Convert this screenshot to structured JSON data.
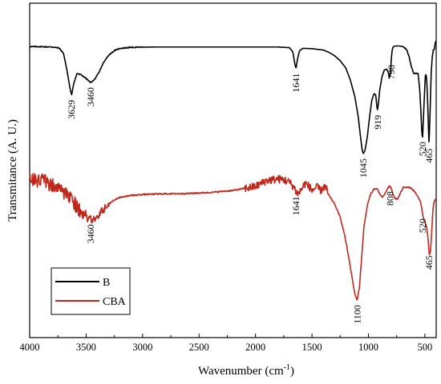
{
  "chart_data": {
    "type": "line",
    "xlabel": "Wavenumber (cm",
    "xlabel_sup": "-1",
    "xlabel_end": ")",
    "ylabel": "Transmitance (A. U.)",
    "xlim": [
      4000,
      400
    ],
    "x_reversed": true,
    "ylim": [
      0,
      1
    ],
    "y_ticks_labeled": false,
    "grid": false,
    "legend_position": "bottom-left",
    "x_ticks": [
      4000,
      3500,
      3000,
      2500,
      2000,
      1500,
      1000,
      500
    ],
    "x_tick_labels": [
      "4000",
      "3500",
      "3000",
      "2500",
      "2000",
      "1500",
      "1000",
      "500"
    ],
    "series": [
      {
        "name": "B",
        "color": "#000000",
        "noisy": false,
        "x": [
          4000,
          3900,
          3800,
          3740,
          3700,
          3670,
          3640,
          3629,
          3610,
          3580,
          3540,
          3500,
          3470,
          3460,
          3430,
          3390,
          3350,
          3300,
          3250,
          3200,
          3100,
          2900,
          2700,
          2500,
          2300,
          2000,
          1800,
          1700,
          1670,
          1650,
          1641,
          1630,
          1610,
          1580,
          1500,
          1400,
          1350,
          1300,
          1250,
          1200,
          1160,
          1120,
          1090,
          1070,
          1055,
          1045,
          1030,
          1010,
          990,
          970,
          950,
          935,
          925,
          919,
          912,
          900,
          880,
          860,
          840,
          825,
          815,
          805,
          798,
          790,
          780,
          760,
          720,
          690,
          660,
          640,
          620,
          600,
          580,
          560,
          545,
          535,
          528,
          523,
          520,
          515,
          505,
          495,
          485,
          475,
          468,
          465,
          460,
          452,
          445,
          435,
          425,
          415,
          410,
          405,
          400
        ],
        "y": [
          0.87,
          0.87,
          0.869,
          0.866,
          0.85,
          0.8,
          0.74,
          0.725,
          0.76,
          0.79,
          0.785,
          0.775,
          0.765,
          0.763,
          0.77,
          0.79,
          0.82,
          0.845,
          0.858,
          0.865,
          0.868,
          0.869,
          0.869,
          0.869,
          0.869,
          0.869,
          0.869,
          0.867,
          0.855,
          0.815,
          0.805,
          0.83,
          0.858,
          0.865,
          0.864,
          0.86,
          0.853,
          0.843,
          0.828,
          0.806,
          0.77,
          0.72,
          0.66,
          0.6,
          0.56,
          0.55,
          0.56,
          0.6,
          0.66,
          0.71,
          0.73,
          0.725,
          0.69,
          0.68,
          0.7,
          0.74,
          0.78,
          0.8,
          0.803,
          0.795,
          0.775,
          0.79,
          0.83,
          0.86,
          0.87,
          0.872,
          0.872,
          0.87,
          0.86,
          0.84,
          0.81,
          0.79,
          0.79,
          0.79,
          0.74,
          0.67,
          0.62,
          0.6,
          0.6,
          0.64,
          0.72,
          0.79,
          0.78,
          0.7,
          0.62,
          0.58,
          0.61,
          0.7,
          0.79,
          0.84,
          0.86,
          0.862,
          0.882,
          0.885,
          0.886
        ]
      },
      {
        "name": "CBA",
        "color": "#c0281c",
        "noisy": true,
        "x": [
          4000,
          3950,
          3900,
          3850,
          3800,
          3750,
          3700,
          3650,
          3600,
          3560,
          3520,
          3480,
          3460,
          3420,
          3380,
          3340,
          3300,
          3250,
          3200,
          3100,
          3000,
          2800,
          2600,
          2400,
          2200,
          2000,
          1900,
          1800,
          1750,
          1700,
          1660,
          1641,
          1620,
          1600,
          1560,
          1520,
          1500,
          1460,
          1420,
          1400,
          1380,
          1350,
          1300,
          1250,
          1220,
          1190,
          1160,
          1140,
          1120,
          1100,
          1080,
          1060,
          1040,
          1010,
          980,
          950,
          920,
          900,
          880,
          860,
          840,
          820,
          808,
          795,
          780,
          760,
          740,
          720,
          690,
          660,
          630,
          600,
          580,
          560,
          545,
          535,
          525,
          520,
          510,
          500,
          490,
          480,
          470,
          465,
          460,
          452,
          444,
          436,
          428,
          420,
          410,
          400
        ],
        "y": [
          0.472,
          0.472,
          0.47,
          0.465,
          0.455,
          0.445,
          0.435,
          0.42,
          0.4,
          0.38,
          0.365,
          0.355,
          0.353,
          0.357,
          0.37,
          0.385,
          0.4,
          0.412,
          0.42,
          0.425,
          0.428,
          0.43,
          0.431,
          0.434,
          0.44,
          0.452,
          0.47,
          0.474,
          0.472,
          0.465,
          0.45,
          0.437,
          0.43,
          0.44,
          0.462,
          0.45,
          0.44,
          0.45,
          0.44,
          0.45,
          0.45,
          0.425,
          0.4,
          0.36,
          0.32,
          0.27,
          0.21,
          0.17,
          0.13,
          0.112,
          0.15,
          0.24,
          0.33,
          0.395,
          0.43,
          0.445,
          0.444,
          0.43,
          0.42,
          0.425,
          0.44,
          0.45,
          0.452,
          0.445,
          0.425,
          0.415,
          0.415,
          0.43,
          0.45,
          0.45,
          0.448,
          0.44,
          0.43,
          0.42,
          0.41,
          0.4,
          0.38,
          0.37,
          0.352,
          0.345,
          0.34,
          0.32,
          0.29,
          0.26,
          0.247,
          0.255,
          0.29,
          0.34,
          0.385,
          0.405,
          0.412,
          0.415
        ]
      }
    ],
    "annotations": [
      {
        "text": "3629",
        "series": "B",
        "x": 3629
      },
      {
        "text": "3460",
        "series": "B",
        "x": 3460
      },
      {
        "text": "1641",
        "series": "B",
        "x": 1641
      },
      {
        "text": "1045",
        "series": "B",
        "x": 1045
      },
      {
        "text": "919",
        "series": "B",
        "x": 919
      },
      {
        "text": "798",
        "series": "B",
        "x": 798
      },
      {
        "text": "520",
        "series": "B",
        "x": 520
      },
      {
        "text": "465",
        "series": "B",
        "x": 465
      },
      {
        "text": "3460",
        "series": "CBA",
        "x": 3460
      },
      {
        "text": "1641",
        "series": "CBA",
        "x": 1641
      },
      {
        "text": "1100",
        "series": "CBA",
        "x": 1100
      },
      {
        "text": "808",
        "series": "CBA",
        "x": 808
      },
      {
        "text": "520",
        "series": "CBA",
        "x": 520
      },
      {
        "text": "465",
        "series": "CBA",
        "x": 465
      }
    ]
  }
}
